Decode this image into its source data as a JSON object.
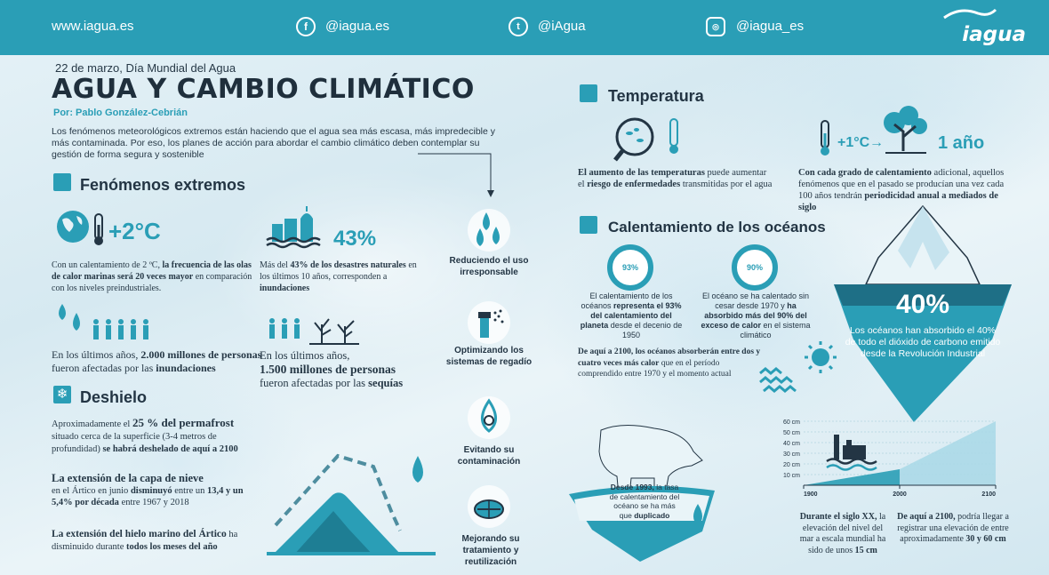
{
  "header": {
    "site": "www.iagua.es",
    "facebook": "@iagua.es",
    "twitter": "@iAgua",
    "instagram": "@iagua_es",
    "logo": "iagua"
  },
  "intro": {
    "date": "22 de marzo, Día Mundial del Agua",
    "title": "AGUA Y CAMBIO CLIMÁTICO",
    "author": "Por: Pablo González-Cebrián",
    "text": "Los fenómenos meteorológicos extremos están haciendo que el agua sea más escasa, más impredecible y más contaminada. Por eso, los planes de acción para abordar el cambio climático deben contemplar su gestión de forma segura y sostenible"
  },
  "extremos": {
    "title": "Fenómenos extremos",
    "temp_badge": "+2°C",
    "heat_pre": "Con un calentamiento de 2 ºC, ",
    "heat_bold": "la frecuencia de las olas de calor marinas será 20 veces mayor",
    "heat_post": " en comparación con los niveles preindustriales.",
    "pct": "43%",
    "disasters_pre": "Más del ",
    "disasters_b1": "43% de los desastres naturales",
    "disasters_mid": " en los últimos 10 años, corresponden a ",
    "disasters_b2": "inundaciones",
    "floods_pre": "En los últimos años, ",
    "floods_b1": "2.000 millones de personas",
    "floods_mid": " fueron afectadas por las ",
    "floods_b2": "inundaciones",
    "drought_pre": "En los últimos años,",
    "drought_b1": "1.500 millones de personas",
    "drought_mid": "fueron afectadas por las ",
    "drought_b2": "sequías"
  },
  "deshielo": {
    "title": "Deshielo",
    "perma_pre": "Aproximadamente el ",
    "perma_b1": "25 % del permafrost",
    "perma_mid": " situado cerca de la superficie (3-4 metros de profundidad) ",
    "perma_b2": "se habrá deshelado de aquí a 2100",
    "snow_b": "La extensión de la capa de nieve",
    "snow_pre": "en el Ártico en junio ",
    "snow_b2": "disminuyó",
    "snow_mid": " entre un ",
    "snow_b3": "13,4 y un 5,4% por década",
    "snow_post": " entre 1967 y 2018",
    "ice_b": "La extensión del hielo marino del Ártico",
    "ice_mid": " ha disminuido durante ",
    "ice_b2": "todos los meses del año"
  },
  "acciones": [
    {
      "label": "Reduciendo el uso irresponsable"
    },
    {
      "label": "Optimizando los sistemas de regadío"
    },
    {
      "label": "Evitando su contaminación"
    },
    {
      "label": "Mejorando su tratamiento y reutilización"
    }
  ],
  "temperatura": {
    "title": "Temperatura",
    "disease_b": "El aumento de las temperaturas",
    "disease_pre": " puede aumentar el ",
    "disease_b2": "riesgo de enfermedades",
    "disease_post": " transmitidas por el agua",
    "plus": "+1°C",
    "year": "1 año",
    "cycle_b": "Con cada grado de calentamiento",
    "cycle_mid": " adicional, aquellos fenómenos que en el pasado se producían una vez cada 100 años tendrán ",
    "cycle_b2": "periodicidad anual a mediados de siglo"
  },
  "oceanos": {
    "title": "Calentamiento de los océanos",
    "c1": "93%",
    "c1_pre": "El calentamiento de los océanos ",
    "c1_b": "representa el 93% del calentamiento del planeta",
    "c1_post": " desde el decenio de 1950",
    "c2": "90%",
    "c2_pre": "El océano se ha calentado sin cesar desde 1970 y ",
    "c2_b": "ha absorbido más del 90% del exceso de calor",
    "c2_post": " en el sistema climático",
    "heat_b": "De aquí a 2100, los océanos absorberán entre dos y cuatro veces más calor",
    "heat_post": " que en el período comprendido entre 1970 y el momento actual",
    "co2_pct": "40%",
    "co2_text": "Los océanos han absorbido el 40% de todo el dióxido de carbono emitido desde la Revolución Industrial",
    "bear_b": "Desde 1993,",
    "bear_mid": " la tasa de calentamiento del océano se ha más que ",
    "bear_b2": "duplicado",
    "sea1_b": "Durante el siglo XX,",
    "sea1_mid": " la elevación del nivel del mar a escala mundial ha sido de unos ",
    "sea1_b2": "15 cm",
    "sea2_b": "De aquí a 2100,",
    "sea2_mid": " podría llegar a registrar una elevación de entre aproximadamente ",
    "sea2_b2": "30 y 60 cm"
  },
  "chart_data": {
    "type": "area",
    "x": [
      1900,
      2000,
      2100
    ],
    "y": [
      0,
      15,
      60
    ],
    "x_ticks": [
      "1900",
      "2000",
      "2100"
    ],
    "y_ticks": [
      "10 cm",
      "20 cm",
      "30 cm",
      "40 cm",
      "50 cm",
      "60 cm"
    ],
    "ylim": [
      0,
      60
    ],
    "colors": {
      "past": "#2a9eb6",
      "future": "#a8d8e6"
    }
  }
}
